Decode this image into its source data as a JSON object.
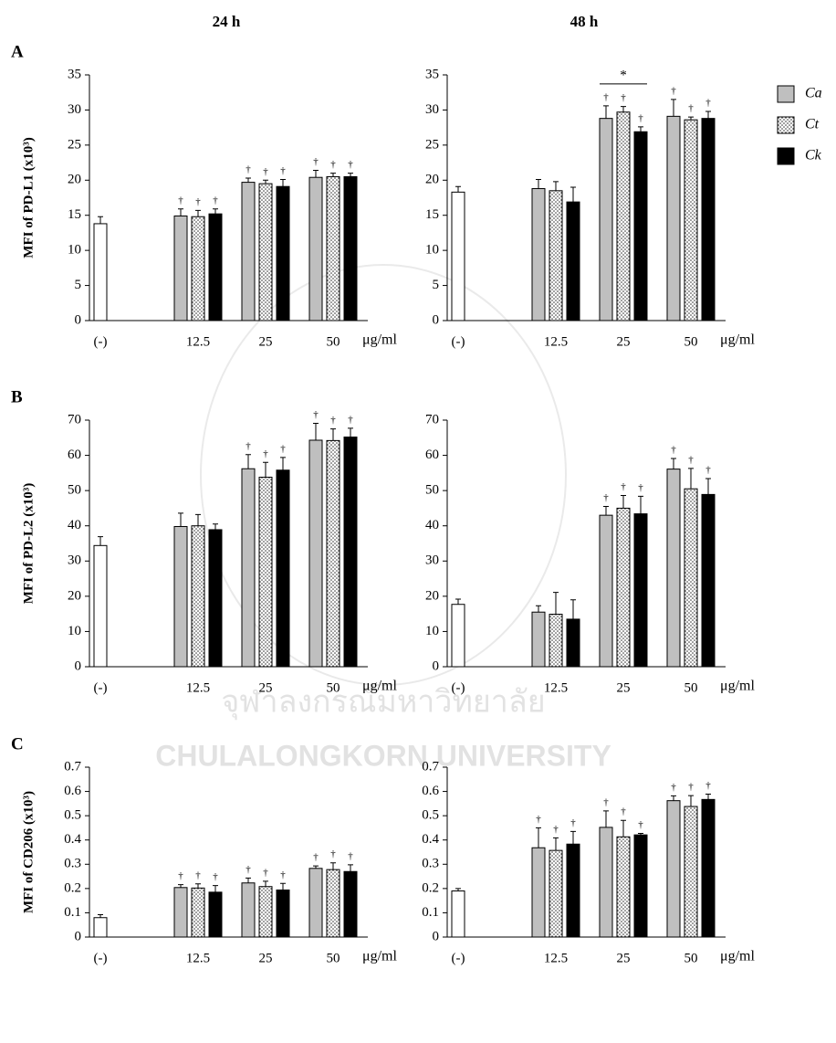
{
  "watermark": {
    "thai": "จุฬาลงกรณ์มหาวิทยาลัย",
    "english": "CHULALONGKORN UNIVERSITY"
  },
  "chart_data": [
    {
      "type": "bar",
      "title": "24 h",
      "panel": "A",
      "ylabel": "MFI of PD-L1 (x10³)",
      "xlabel": "μg/ml",
      "categories": [
        "(-)",
        "12.5",
        "25",
        "50"
      ],
      "ylim": [
        0,
        35
      ],
      "yticks": [
        0,
        5,
        10,
        15,
        20,
        25,
        30,
        35
      ],
      "series": [
        {
          "color": "#ffffff",
          "values": [
            13.8,
            null,
            null,
            null
          ],
          "errors": [
            1.0,
            null,
            null,
            null
          ]
        },
        {
          "name": "Ca",
          "color": "#bfbfbf",
          "values": [
            null,
            14.9,
            19.7,
            20.4
          ],
          "errors": [
            null,
            1.0,
            0.6,
            1.0
          ],
          "annotations": [
            null,
            "†",
            "†",
            "†"
          ]
        },
        {
          "name": "Ct",
          "color": "dots",
          "values": [
            null,
            14.8,
            19.5,
            20.5
          ],
          "errors": [
            null,
            0.9,
            0.5,
            0.5
          ],
          "annotations": [
            null,
            "†",
            "†",
            "†"
          ]
        },
        {
          "name": "Ck",
          "color": "#000000",
          "values": [
            null,
            15.2,
            19.1,
            20.5
          ],
          "errors": [
            null,
            0.7,
            1.0,
            0.5
          ],
          "annotations": [
            null,
            "†",
            "†",
            "†"
          ]
        }
      ]
    },
    {
      "type": "bar",
      "title": "48 h",
      "xlabel": "μg/ml",
      "categories": [
        "(-)",
        "12.5",
        "25",
        "50"
      ],
      "ylim": [
        0,
        35
      ],
      "yticks": [
        0,
        5,
        10,
        15,
        20,
        25,
        30,
        35
      ],
      "significance": [
        {
          "text": "*",
          "category": 2
        }
      ],
      "series": [
        {
          "color": "#ffffff",
          "values": [
            18.3,
            null,
            null,
            null
          ],
          "errors": [
            0.8,
            null,
            null,
            null
          ]
        },
        {
          "color": "#bfbfbf",
          "values": [
            null,
            18.8,
            28.8,
            29.1
          ],
          "errors": [
            null,
            1.3,
            1.8,
            2.4
          ],
          "annotations": [
            null,
            null,
            "†",
            "†"
          ]
        },
        {
          "color": "dots",
          "values": [
            null,
            18.5,
            29.7,
            28.6
          ],
          "errors": [
            null,
            1.3,
            0.8,
            0.4
          ],
          "annotations": [
            null,
            null,
            "†",
            "†"
          ]
        },
        {
          "color": "#000000",
          "values": [
            null,
            16.9,
            26.9,
            28.8
          ],
          "errors": [
            null,
            2.1,
            0.7,
            1.0
          ],
          "annotations": [
            null,
            null,
            "†",
            "†"
          ]
        }
      ]
    },
    {
      "type": "bar",
      "panel": "B",
      "ylabel": "MFI of PD-L2 (x10³)",
      "xlabel": "μg/ml",
      "categories": [
        "(-)",
        "12.5",
        "25",
        "50"
      ],
      "ylim": [
        0,
        70
      ],
      "yticks": [
        0,
        10,
        20,
        30,
        40,
        50,
        60,
        70
      ],
      "series": [
        {
          "color": "#ffffff",
          "values": [
            34.4,
            null,
            null,
            null
          ],
          "errors": [
            2.5,
            null,
            null,
            null
          ]
        },
        {
          "color": "#bfbfbf",
          "values": [
            null,
            39.8,
            56.2,
            64.3
          ],
          "errors": [
            null,
            3.8,
            4.0,
            4.8
          ],
          "annotations": [
            null,
            null,
            "†",
            "†"
          ]
        },
        {
          "color": "dots",
          "values": [
            null,
            40.0,
            53.8,
            64.2
          ],
          "errors": [
            null,
            3.2,
            4.2,
            3.3
          ],
          "annotations": [
            null,
            null,
            "†",
            "†"
          ]
        },
        {
          "color": "#000000",
          "values": [
            null,
            38.9,
            55.8,
            65.2
          ],
          "errors": [
            null,
            1.6,
            3.6,
            2.5
          ],
          "annotations": [
            null,
            null,
            "†",
            "†"
          ]
        }
      ]
    },
    {
      "type": "bar",
      "xlabel": "μg/ml",
      "categories": [
        "(-)",
        "12.5",
        "25",
        "50"
      ],
      "ylim": [
        0,
        70
      ],
      "yticks": [
        0,
        10,
        20,
        30,
        40,
        50,
        60,
        70
      ],
      "series": [
        {
          "color": "#ffffff",
          "values": [
            17.7,
            null,
            null,
            null
          ],
          "errors": [
            1.5,
            null,
            null,
            null
          ]
        },
        {
          "color": "#bfbfbf",
          "values": [
            null,
            15.5,
            43.0,
            56.1
          ],
          "errors": [
            null,
            1.8,
            2.5,
            3.0
          ],
          "annotations": [
            null,
            null,
            "†",
            "†"
          ]
        },
        {
          "color": "dots",
          "values": [
            null,
            14.9,
            45.0,
            50.5
          ],
          "errors": [
            null,
            6.2,
            3.6,
            5.8
          ],
          "annotations": [
            null,
            null,
            "†",
            "†"
          ]
        },
        {
          "color": "#000000",
          "values": [
            null,
            13.5,
            43.4,
            48.9
          ],
          "errors": [
            null,
            5.5,
            5.0,
            4.5
          ],
          "annotations": [
            null,
            null,
            "†",
            "†"
          ]
        }
      ]
    },
    {
      "type": "bar",
      "panel": "C",
      "ylabel": "MFI of CD206 (x10³)",
      "xlabel": "μg/ml",
      "categories": [
        "(-)",
        "12.5",
        "25",
        "50"
      ],
      "ylim": [
        0,
        0.7
      ],
      "yticks": [
        0,
        0.1,
        0.2,
        0.3,
        0.4,
        0.5,
        0.6,
        0.7
      ],
      "series": [
        {
          "color": "#ffffff",
          "values": [
            0.08,
            null,
            null,
            null
          ],
          "errors": [
            0.012,
            null,
            null,
            null
          ]
        },
        {
          "color": "#bfbfbf",
          "values": [
            null,
            0.204,
            0.223,
            0.283
          ],
          "errors": [
            null,
            0.012,
            0.02,
            0.01
          ],
          "annotations": [
            null,
            "†",
            "†",
            "†"
          ]
        },
        {
          "color": "dots",
          "values": [
            null,
            0.202,
            0.208,
            0.278
          ],
          "errors": [
            null,
            0.017,
            0.022,
            0.028
          ],
          "annotations": [
            null,
            "†",
            "†",
            "†"
          ]
        },
        {
          "color": "#000000",
          "values": [
            null,
            0.185,
            0.194,
            0.27
          ],
          "errors": [
            null,
            0.027,
            0.027,
            0.028
          ],
          "annotations": [
            null,
            "†",
            "†",
            "†"
          ]
        }
      ]
    },
    {
      "type": "bar",
      "xlabel": "μg/ml",
      "categories": [
        "(-)",
        "12.5",
        "25",
        "50"
      ],
      "ylim": [
        0,
        0.7
      ],
      "yticks": [
        0,
        0.1,
        0.2,
        0.3,
        0.4,
        0.5,
        0.6,
        0.7
      ],
      "series": [
        {
          "color": "#ffffff",
          "values": [
            0.19,
            null,
            null,
            null
          ],
          "errors": [
            0.01,
            null,
            null,
            null
          ]
        },
        {
          "color": "#bfbfbf",
          "values": [
            null,
            0.368,
            0.452,
            0.562
          ],
          "errors": [
            null,
            0.082,
            0.068,
            0.02
          ],
          "annotations": [
            null,
            "†",
            "†",
            "†"
          ]
        },
        {
          "color": "dots",
          "values": [
            null,
            0.357,
            0.413,
            0.538
          ],
          "errors": [
            null,
            0.052,
            0.068,
            0.045
          ],
          "annotations": [
            null,
            "†",
            "†",
            "†"
          ]
        },
        {
          "color": "#000000",
          "values": [
            null,
            0.383,
            0.421,
            0.567
          ],
          "errors": [
            null,
            0.052,
            0.006,
            0.022
          ],
          "annotations": [
            null,
            "†",
            "†",
            "†"
          ]
        }
      ]
    }
  ]
}
